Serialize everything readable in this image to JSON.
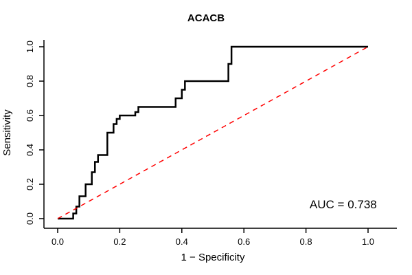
{
  "figure": {
    "title": "ACACB",
    "xlabel": "1 − Specificity",
    "ylabel": "Sensitivity",
    "auc_text": "AUC = 0.738"
  },
  "chart_data": {
    "type": "line",
    "subtype": "roc-curve",
    "title": "ACACB",
    "xlabel": "1 − Specificity",
    "ylabel": "Sensitivity",
    "xlim": [
      0.0,
      1.0
    ],
    "ylim": [
      0.0,
      1.0
    ],
    "x_ticks": [
      0.0,
      0.2,
      0.4,
      0.6,
      0.8,
      1.0
    ],
    "x_tick_labels": [
      "0.0",
      "0.2",
      "0.4",
      "0.6",
      "0.8",
      "1.0"
    ],
    "y_ticks": [
      0.0,
      0.2,
      0.4,
      0.6,
      0.8,
      1.0
    ],
    "y_tick_labels": [
      "0.0",
      "0.2",
      "0.4",
      "0.6",
      "0.8",
      "1.0"
    ],
    "grid": false,
    "legend": "none",
    "auc": 0.738,
    "annotations": [
      {
        "text": "AUC = 0.738",
        "x": 0.92,
        "y": 0.06,
        "color": "#000000"
      }
    ],
    "series": [
      {
        "name": "ROC curve",
        "color": "#000000",
        "line_style": "solid",
        "line_width": 2.5,
        "points": [
          [
            0.0,
            0.0
          ],
          [
            0.05,
            0.0
          ],
          [
            0.05,
            0.03
          ],
          [
            0.06,
            0.03
          ],
          [
            0.06,
            0.07
          ],
          [
            0.07,
            0.07
          ],
          [
            0.07,
            0.13
          ],
          [
            0.09,
            0.13
          ],
          [
            0.09,
            0.2
          ],
          [
            0.11,
            0.2
          ],
          [
            0.11,
            0.27
          ],
          [
            0.12,
            0.27
          ],
          [
            0.12,
            0.33
          ],
          [
            0.13,
            0.33
          ],
          [
            0.13,
            0.37
          ],
          [
            0.16,
            0.37
          ],
          [
            0.16,
            0.5
          ],
          [
            0.18,
            0.5
          ],
          [
            0.18,
            0.55
          ],
          [
            0.19,
            0.55
          ],
          [
            0.19,
            0.58
          ],
          [
            0.2,
            0.58
          ],
          [
            0.2,
            0.6
          ],
          [
            0.25,
            0.6
          ],
          [
            0.25,
            0.62
          ],
          [
            0.26,
            0.62
          ],
          [
            0.26,
            0.65
          ],
          [
            0.38,
            0.65
          ],
          [
            0.38,
            0.7
          ],
          [
            0.4,
            0.7
          ],
          [
            0.4,
            0.75
          ],
          [
            0.41,
            0.75
          ],
          [
            0.41,
            0.8
          ],
          [
            0.55,
            0.8
          ],
          [
            0.55,
            0.9
          ],
          [
            0.56,
            0.9
          ],
          [
            0.56,
            1.0
          ],
          [
            1.0,
            1.0
          ]
        ]
      },
      {
        "name": "chance diagonal",
        "color": "#FF0000",
        "line_style": "dashed",
        "line_width": 1.5,
        "points": [
          [
            0.0,
            0.0
          ],
          [
            1.0,
            1.0
          ]
        ]
      }
    ]
  }
}
